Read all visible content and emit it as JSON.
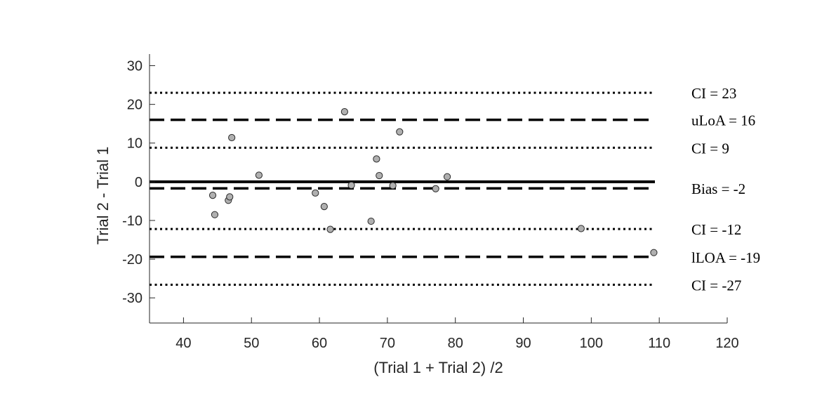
{
  "chart_data": {
    "type": "scatter",
    "xlabel": "(Trial 1 + Trial 2) /2",
    "ylabel": "Trial 2 - Trial 1",
    "xlim": [
      35,
      120
    ],
    "ylim": [
      -36.5,
      33
    ],
    "xticks": [
      40,
      50,
      60,
      70,
      80,
      90,
      100,
      110,
      120
    ],
    "yticks": [
      -30,
      -20,
      -10,
      0,
      10,
      20,
      30
    ],
    "box": "left-bottom",
    "points": {
      "x": [
        44.3,
        44.6,
        46.6,
        46.8,
        47.1,
        51.1,
        59.4,
        60.7,
        61.6,
        63.7,
        64.7,
        67.6,
        68.4,
        68.8,
        70.8,
        71.8,
        77.1,
        78.8,
        98.5,
        109.2
      ],
      "y": [
        -3.5,
        -8.5,
        -4.8,
        -3.9,
        11.4,
        1.7,
        -2.9,
        -6.4,
        -12.3,
        18.1,
        -0.9,
        -10.2,
        5.9,
        1.6,
        -1.0,
        12.9,
        -1.8,
        1.3,
        -12.1,
        -18.3
      ]
    },
    "reference_lines": [
      {
        "name": "zero",
        "y": 0,
        "style": "solid",
        "label": ""
      },
      {
        "name": "ci-upper-upper",
        "y": 23,
        "style": "dotted",
        "label": "CI = 23"
      },
      {
        "name": "upper-loa",
        "y": 16,
        "style": "dashed",
        "label": "uLoA = 16"
      },
      {
        "name": "ci-upper-lower",
        "y": 8.8,
        "style": "dotted",
        "label": "CI = 9"
      },
      {
        "name": "bias",
        "y": -1.7,
        "style": "dashed",
        "label": "Bias = -2"
      },
      {
        "name": "ci-lower-upper",
        "y": -12.2,
        "style": "dotted",
        "label": "CI = -12"
      },
      {
        "name": "lower-loa",
        "y": -19.4,
        "style": "dashed",
        "label": "lLOA = -19"
      },
      {
        "name": "ci-lower-lower",
        "y": -26.6,
        "style": "dotted",
        "label": "CI = -27"
      }
    ],
    "colors": {
      "axis": "#262626",
      "line": "#000000",
      "marker_fill": "#b0b0b0",
      "marker_edge": "#2a2a2a"
    }
  }
}
